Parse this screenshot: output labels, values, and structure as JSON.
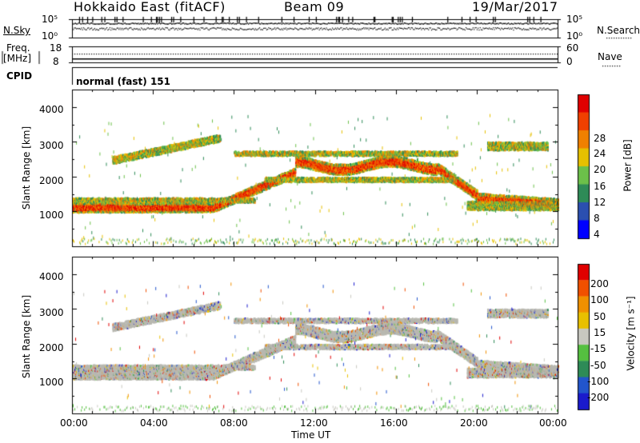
{
  "header": {
    "station": "Hokkaido East (fitACF)",
    "beam": "Beam 09",
    "date": "19/Mar/2017"
  },
  "strip_labels": {
    "nsky": "N.Sky",
    "nsearch": "N.Search",
    "freq_line1": "Freq.",
    "freq_line2": "[MHz]",
    "nave": "Nave",
    "cpid": "CPID",
    "cpid_value": "normal (fast) 151",
    "nsky_ticks": [
      "10^5",
      "10^0"
    ],
    "nsearch_ticks": [
      "10^5",
      "10^0"
    ],
    "freq_ticks": [
      "18",
      "8"
    ],
    "nave_ticks": [
      "60",
      "0"
    ]
  },
  "colors": {
    "power_scale": [
      "#0000ff",
      "#2b4fb0",
      "#2e8b57",
      "#6cc04a",
      "#e6c000",
      "#f08000",
      "#f04000",
      "#e00000"
    ],
    "velocity_scale": [
      "#1a1acc",
      "#2255cc",
      "#2e8b57",
      "#55c040",
      "#c8c8c0",
      "#e8c000",
      "#f09000",
      "#f05000",
      "#e00000"
    ],
    "ground_scatter": "#b8b8b0"
  },
  "chart_data": [
    {
      "type": "heatmap",
      "panel": "power",
      "ylabel": "Slant Range [km]",
      "ylim": [
        0,
        4500
      ],
      "yticks": [
        "1000",
        "2000",
        "3000",
        "4000"
      ],
      "xlim_hours": [
        0,
        24
      ],
      "colorbar_label": "Power [dB]",
      "colorbar_ticks": [
        "4",
        "8",
        "12",
        "16",
        "20",
        "24",
        "28"
      ],
      "colorbar_range": [
        0,
        32
      ]
    },
    {
      "type": "heatmap",
      "panel": "velocity",
      "ylabel": "Slant Range [km]",
      "ylim": [
        0,
        4500
      ],
      "yticks": [
        "1000",
        "2000",
        "3000",
        "4000"
      ],
      "xlim_hours": [
        0,
        24
      ],
      "colorbar_label": "Velocity [m s⁻¹]",
      "colorbar_ticks": [
        "200",
        "100",
        "50",
        "15",
        "-15",
        "-50",
        "-100",
        "-200"
      ]
    }
  ],
  "xaxis": {
    "label": "Time UT",
    "ticks": [
      "00:00",
      "04:00",
      "08:00",
      "12:00",
      "16:00",
      "20:00",
      "00:00"
    ]
  }
}
